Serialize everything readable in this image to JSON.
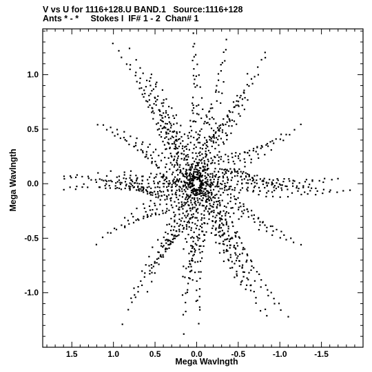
{
  "header": {
    "line1": "V vs U for 1116+128.U BAND.1   Source:1116+128",
    "line2": "Ants * - *     Stokes I  IF# 1 - 2  Chan# 1"
  },
  "chart_data": {
    "type": "scatter",
    "title": "V vs U for 1116+128.U BAND.1   Source:1116+128",
    "subtitle": "Ants * - *     Stokes I  IF# 1 - 2  Chan# 1",
    "xlabel": "Mega Wavlngth",
    "ylabel": "Mega Wavlngth",
    "xlim": [
      1.85,
      -2.0
    ],
    "ylim": [
      -1.5,
      1.42
    ],
    "x_reversed": true,
    "grid": false,
    "xticks": [
      {
        "value": 1.5,
        "label": "1.5"
      },
      {
        "value": 1.0,
        "label": "1.0"
      },
      {
        "value": 0.5,
        "label": "0.5"
      },
      {
        "value": 0.0,
        "label": "0.0"
      },
      {
        "value": -0.5,
        "label": "-0.5"
      },
      {
        "value": -1.0,
        "label": "-1.0"
      },
      {
        "value": -1.5,
        "label": "-1.5"
      }
    ],
    "yticks": [
      {
        "value": 1.0,
        "label": "1.0"
      },
      {
        "value": 0.5,
        "label": "0.5"
      },
      {
        "value": 0.0,
        "label": "0.0"
      },
      {
        "value": -0.5,
        "label": "-0.5"
      },
      {
        "value": -1.0,
        "label": "-1.0"
      }
    ],
    "point_color": "#000000",
    "arms": [
      {
        "end": [
          1.75,
          0.05
        ],
        "n": 22
      },
      {
        "end": [
          1.6,
          -0.05
        ],
        "n": 20
      },
      {
        "end": [
          -1.85,
          -0.05
        ],
        "n": 22
      },
      {
        "end": [
          -1.7,
          0.05
        ],
        "n": 20
      },
      {
        "end": [
          1.0,
          1.28
        ],
        "n": 18
      },
      {
        "end": [
          0.8,
          1.25
        ],
        "n": 16
      },
      {
        "end": [
          -0.9,
          -1.28
        ],
        "n": 18
      },
      {
        "end": [
          -1.1,
          -1.22
        ],
        "n": 16
      },
      {
        "end": [
          -0.9,
          1.33
        ],
        "n": 18
      },
      {
        "end": [
          -0.35,
          1.33
        ],
        "n": 14
      },
      {
        "end": [
          0.9,
          -1.28
        ],
        "n": 18
      },
      {
        "end": [
          0.15,
          -1.38
        ],
        "n": 16
      },
      {
        "end": [
          0.05,
          1.38
        ],
        "n": 14
      },
      {
        "end": [
          -0.05,
          -1.38
        ],
        "n": 14
      },
      {
        "end": [
          1.2,
          0.55
        ],
        "n": 16
      },
      {
        "end": [
          -1.25,
          -0.55
        ],
        "n": 16
      },
      {
        "end": [
          -1.25,
          0.55
        ],
        "n": 16
      },
      {
        "end": [
          1.2,
          -0.55
        ],
        "n": 16
      },
      {
        "end": [
          0.55,
          1.0
        ],
        "n": 12
      },
      {
        "end": [
          -0.6,
          -1.0
        ],
        "n": 12
      },
      {
        "end": [
          -0.6,
          1.0
        ],
        "n": 12
      },
      {
        "end": [
          0.6,
          -1.0
        ],
        "n": 12
      }
    ],
    "tracks_per_arm": 7
  }
}
